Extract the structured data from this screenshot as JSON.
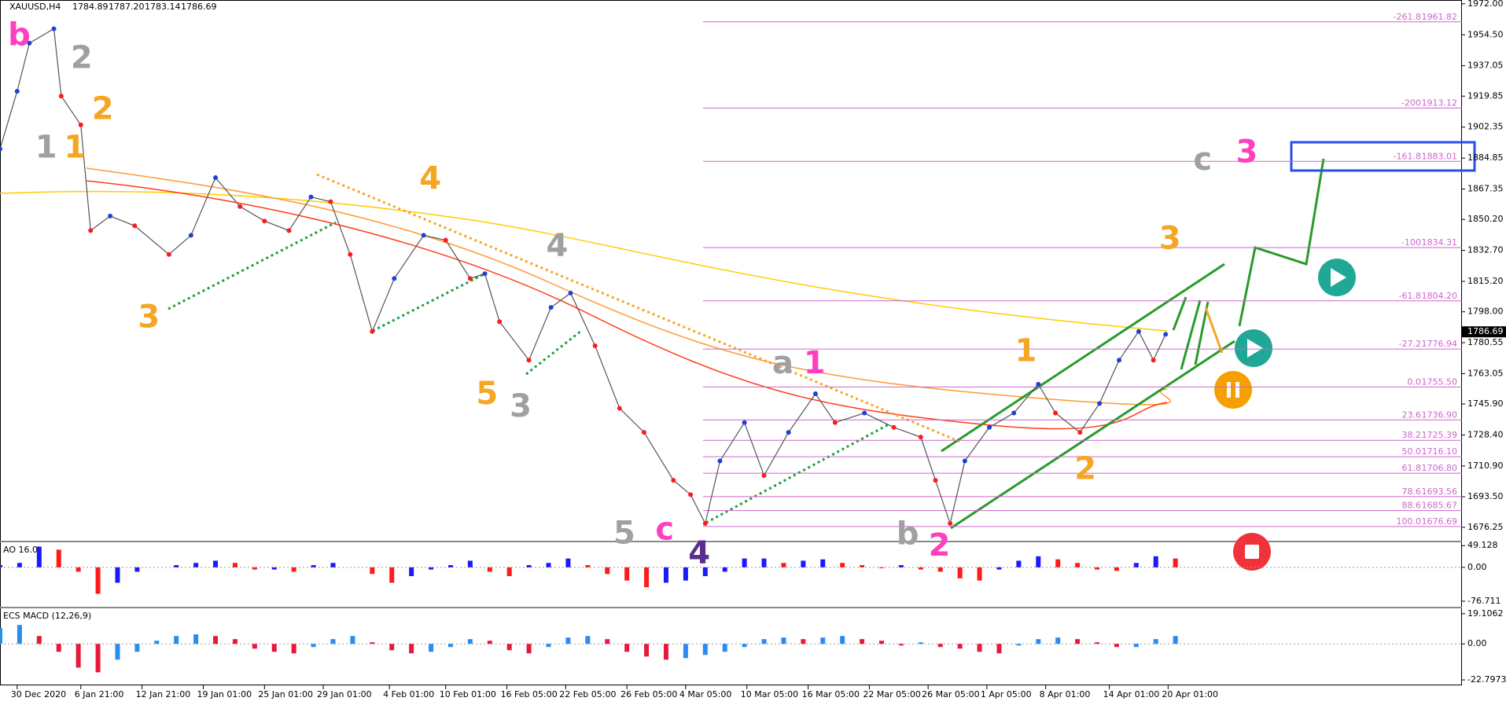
{
  "header": {
    "symbol": "XAUUSD,H4",
    "ohlc": [
      1784.89,
      {
        "value": 1787.2,
        "label": "1787.20"
      },
      1783.14,
      1786.69
    ]
  },
  "chart_data": [
    {
      "type": "line",
      "x": [
        0,
        7,
        12,
        22,
        25,
        33,
        37,
        45,
        55,
        69,
        78,
        88,
        98,
        108,
        118,
        127,
        135,
        143,
        152,
        161,
        173,
        182,
        192,
        198,
        204,
        216,
        225,
        233,
        243,
        253,
        263,
        275,
        282,
        288,
        294,
        304,
        312,
        322,
        333,
        341,
        353,
        365,
        376,
        382,
        388,
        394,
        404,
        414,
        424,
        431,
        441,
        449,
        457,
        465,
        471,
        476
      ],
      "series": [
        {
          "color": "#1f3fd6",
          "down_color": "#ff1a1a",
          "values": [
            1890.0,
            1922.6,
            1949.8,
            1957.9,
            1919.9,
            1903.6,
            1843.9,
            1852.1,
            1846.6,
            1830.4,
            1841.2,
            1873.8,
            1857.5,
            1849.3,
            1843.9,
            1862.9,
            1860.2,
            1830.4,
            1786.9,
            1816.8,
            1841.2,
            1838.5,
            1816.8,
            1819.5,
            1792.4,
            1770.7,
            1800.5,
            1808.6,
            1778.8,
            1743.5,
            1729.9,
            1702.8,
            1694.7,
            1678.4,
            1713.7,
            1735.4,
            1705.5,
            1729.9,
            1751.7,
            1735.4,
            1740.8,
            1732.7,
            1727.2,
            1702.8,
            1678.4,
            1713.7,
            1732.7,
            1740.8,
            1757.1,
            1740.8,
            1729.9,
            1746.2,
            1770.7,
            1786.9,
            1770.7,
            1785.3
          ]
        }
      ],
      "xlim": [
        0,
        597
      ],
      "ylim": [
        1668.65,
        1974.17
      ],
      "yticks": [
        {
          "value": 1972,
          "label": "1972.00"
        },
        {
          "value": 1954.5,
          "label": "1954.50"
        },
        {
          "value": 1937.05,
          "label": "1937.05"
        },
        {
          "value": 1919.85,
          "label": "1919.85"
        },
        {
          "value": 1902.35,
          "label": "1902.35"
        },
        {
          "value": 1884.85,
          "label": "1884.85"
        },
        {
          "value": 1867.35,
          "label": "1867.35"
        },
        {
          "value": 1850.2,
          "label": "1850.20"
        },
        {
          "value": 1832.7,
          "label": "1832.70"
        },
        {
          "value": 1815.2,
          "label": "1815.20"
        },
        {
          "value": 1798,
          "label": "1798.00"
        },
        {
          "value": 1780.55,
          "label": "1780.55"
        },
        {
          "value": 1763.05,
          "label": "1763.05"
        },
        {
          "value": 1745.9,
          "label": "1745.90"
        },
        {
          "value": 1728.4,
          "label": "1728.40"
        },
        {
          "value": 1710.9,
          "label": "1710.90"
        },
        {
          "value": 1693.5,
          "label": "1693.50"
        },
        {
          "value": 1676.25,
          "label": "1676.25"
        }
      ],
      "xticks": [
        {
          "value": 7,
          "label": "30 Dec 2020"
        },
        {
          "value": 33,
          "label": "6 Jan 21:00"
        },
        {
          "value": 58,
          "label": "12 Jan 21:00"
        },
        {
          "value": 83,
          "label": "19 Jan 01:00"
        },
        {
          "value": 108,
          "label": "25 Jan 01:00"
        },
        {
          "value": 132,
          "label": "29 Jan 01:00"
        },
        {
          "value": 159,
          "label": "4 Feb 01:00"
        },
        {
          "value": 182,
          "label": "10 Feb 01:00"
        },
        {
          "value": 207,
          "label": "16 Feb 05:00"
        },
        {
          "value": 231,
          "label": "22 Feb 05:00"
        },
        {
          "value": 256,
          "label": "26 Feb 05:00"
        },
        {
          "value": 280,
          "label": "4 Mar 05:00"
        },
        {
          "value": 305,
          "label": "10 Mar 05:00"
        },
        {
          "value": 330,
          "label": "16 Mar 05:00"
        },
        {
          "value": 355,
          "label": "22 Mar 05:00"
        },
        {
          "value": 379,
          "label": "26 Mar 05:00"
        },
        {
          "value": 403,
          "label": "1 Apr 05:00"
        },
        {
          "value": 427,
          "label": "8 Apr 01:00"
        },
        {
          "value": 453,
          "label": "14 Apr 01:00"
        },
        {
          "value": 477,
          "label": "20 Apr 01:00"
        }
      ],
      "fib_color": "#cc66cc",
      "fib_levels": [
        {
          "ratio": "-261.8",
          "price": 1961.82
        },
        {
          "ratio": "-200",
          "price": 1913.12
        },
        {
          "ratio": "-161.8",
          "price": 1883.01
        },
        {
          "ratio": "-100",
          "price": 1834.31
        },
        {
          "ratio": "-61.8",
          "price": {
            "value": 1804.2,
            "label": "1804.20"
          }
        },
        {
          "ratio": "-27.2",
          "price": 1776.94
        },
        {
          "ratio": "0.0",
          "price": {
            "value": 1755.5,
            "label": "1755.50"
          }
        },
        {
          "ratio": "23.6",
          "price": {
            "value": 1736.9,
            "label": "1736.90"
          }
        },
        {
          "ratio": "38.2",
          "price": 1725.39
        },
        {
          "ratio": "50.0",
          "price": {
            "value": 1716.1,
            "label": "1716.10"
          }
        },
        {
          "ratio": "61.8",
          "price": {
            "value": 1706.8,
            "label": "1706.80"
          }
        },
        {
          "ratio": "78.6",
          "price": 1693.56
        },
        {
          "ratio": "88.6",
          "price": 1685.67
        },
        {
          "ratio": "100.0",
          "price": 1676.69
        }
      ],
      "annotations": [
        {
          "text": "b",
          "color": "#ff3fbf"
        },
        {
          "text": "2",
          "color": "#a0a0a0"
        },
        {
          "text": "2",
          "color": "#f5a623"
        },
        {
          "text": "1",
          "color": "#a0a0a0"
        },
        {
          "text": "1",
          "color": "#f5a623"
        },
        {
          "text": "3",
          "color": "#f5a623"
        },
        {
          "text": "4",
          "color": "#f5a623"
        },
        {
          "text": "4",
          "color": "#a0a0a0"
        },
        {
          "text": "5",
          "color": "#f5a623"
        },
        {
          "text": "3",
          "color": "#a0a0a0"
        },
        {
          "text": "5",
          "color": "#a0a0a0"
        },
        {
          "text": "c",
          "color": "#ff3fbf"
        },
        {
          "text": "4",
          "color": "#5b2d8e"
        },
        {
          "text": "a",
          "color": "#a0a0a0"
        },
        {
          "text": "1",
          "color": "#ff3fbf"
        },
        {
          "text": "b",
          "color": "#a0a0a0"
        },
        {
          "text": "2",
          "color": "#ff3fbf"
        },
        {
          "text": "1",
          "color": "#f5a623"
        },
        {
          "text": "2",
          "color": "#f5a623"
        },
        {
          "text": "3",
          "color": "#f5a623"
        },
        {
          "text": "c",
          "color": "#a0a0a0"
        },
        {
          "text": "3",
          "color": "#ff3fbf"
        }
      ]
    },
    {
      "type": "bar",
      "title": "AO 16.0",
      "x": [
        0,
        8,
        16,
        24,
        32,
        40,
        48,
        56,
        64,
        72,
        80,
        88,
        96,
        104,
        112,
        120,
        128,
        136,
        144,
        152,
        160,
        168,
        176,
        184,
        192,
        200,
        208,
        216,
        224,
        232,
        240,
        248,
        256,
        264,
        272,
        280,
        288,
        296,
        304,
        312,
        320,
        328,
        336,
        344,
        352,
        360,
        368,
        376,
        384,
        392,
        400,
        408,
        416,
        424,
        432,
        440,
        448,
        456,
        464,
        472,
        480
      ],
      "values": [
        5,
        10,
        47,
        40,
        -10,
        -60,
        -35,
        -10,
        0,
        5,
        10,
        15,
        10,
        -5,
        -5,
        -10,
        5,
        10,
        0,
        -15,
        -35,
        -20,
        -5,
        5,
        15,
        -10,
        -20,
        5,
        10,
        20,
        5,
        -15,
        -30,
        -45,
        -35,
        -30,
        -20,
        -10,
        20,
        20,
        10,
        15,
        18,
        10,
        5,
        -2,
        5,
        -5,
        -10,
        -25,
        -30,
        -5,
        15,
        25,
        18,
        10,
        -5,
        -8,
        10,
        25,
        20
      ],
      "up_color": "#1a1aff",
      "down_color": "#ff1a1a",
      "xlim": [
        0,
        597
      ],
      "ylim": [
        -89.4,
        56.7
      ],
      "yticks": [
        49.128,
        {
          "value": 0,
          "label": "0.00"
        },
        -76.711
      ]
    },
    {
      "type": "bar",
      "title": "ECS MACD (12,26,9)",
      "x": [
        0,
        8,
        16,
        24,
        32,
        40,
        48,
        56,
        64,
        72,
        80,
        88,
        96,
        104,
        112,
        120,
        128,
        136,
        144,
        152,
        160,
        168,
        176,
        184,
        192,
        200,
        208,
        216,
        224,
        232,
        240,
        248,
        256,
        264,
        272,
        280,
        288,
        296,
        304,
        312,
        320,
        328,
        336,
        344,
        352,
        360,
        368,
        376,
        384,
        392,
        400,
        408,
        416,
        424,
        432,
        440,
        448,
        456,
        464,
        472,
        480
      ],
      "values": [
        10,
        12,
        5,
        -5,
        -15,
        -18,
        -10,
        -5,
        2,
        5,
        6,
        5,
        3,
        -3,
        -5,
        -6,
        -2,
        3,
        5,
        1,
        -4,
        -6,
        -5,
        -2,
        3,
        2,
        -4,
        -6,
        -2,
        4,
        5,
        3,
        -5,
        -8,
        -10,
        -9,
        -7,
        -5,
        -2,
        3,
        4,
        3,
        4,
        5,
        3,
        2,
        -1,
        1,
        -2,
        -3,
        -5,
        -6,
        -1,
        3,
        4,
        3,
        1,
        -2,
        -2,
        3,
        5
      ],
      "up_color": "#2a8cf0",
      "down_color": "#e8183c",
      "xlim": [
        0,
        597
      ],
      "ylim": [
        -26.25,
        22.5
      ],
      "yticks": [
        19.1062,
        {
          "value": 0,
          "label": "0.00"
        },
        -22.7973
      ]
    }
  ]
}
